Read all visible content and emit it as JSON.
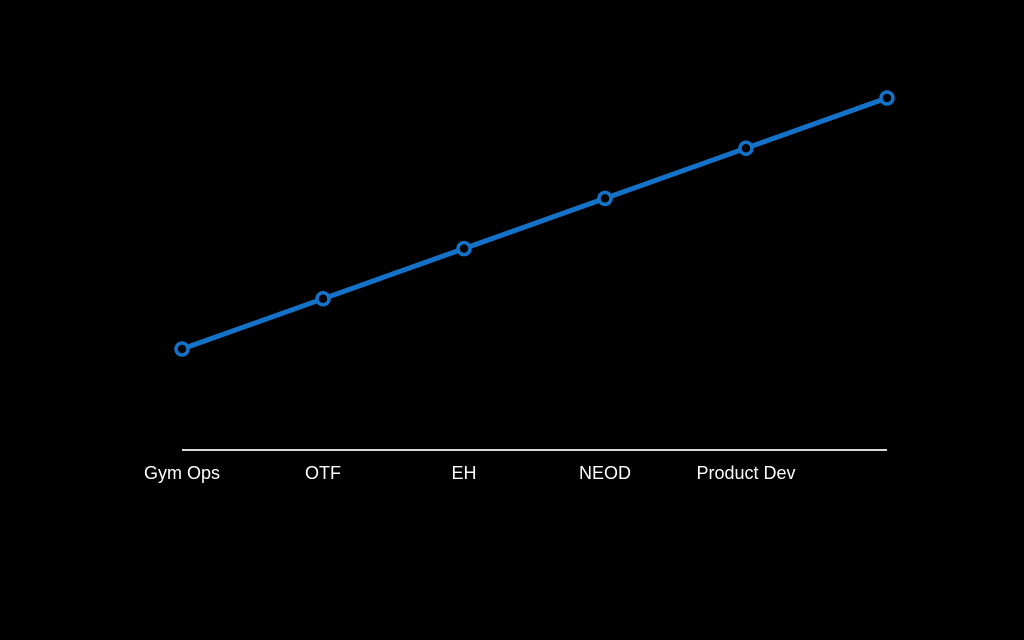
{
  "chart_data": {
    "type": "line",
    "categories": [
      "Gym Ops",
      "OTF",
      "EH",
      "NEOD",
      "Product Dev",
      ""
    ],
    "series": [
      {
        "values": [
          1,
          2,
          3,
          4,
          5,
          6
        ]
      }
    ],
    "title": "",
    "xlabel": "",
    "ylabel": "",
    "ylim": [
      -1,
      7
    ],
    "grid": false,
    "legend": "none",
    "colors": {
      "line": "#1473c8",
      "axis": "#d9d9d9",
      "background": "#000000",
      "text": "#ffffff"
    }
  }
}
